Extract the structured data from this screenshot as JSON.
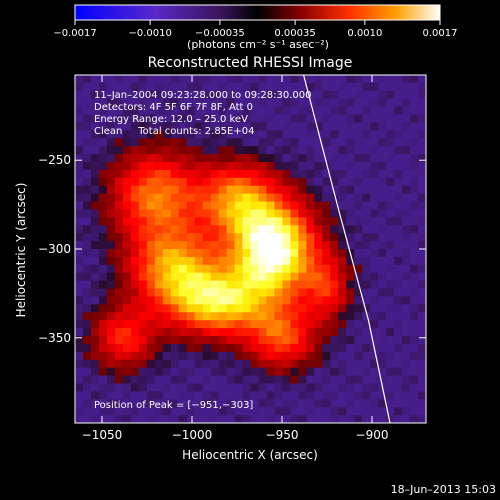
{
  "chart_data": {
    "type": "heatmap",
    "title": "Reconstructed RHESSI Image",
    "xlabel": "Heliocentric X (arcsec)",
    "ylabel": "Heliocentric Y (arcsec)",
    "xlim": [
      -1065,
      -870
    ],
    "ylim": [
      -398,
      -202
    ],
    "x_ticks": [
      -1050,
      -1000,
      -950,
      -900
    ],
    "x_tick_labels": [
      "−1050",
      "−1000",
      "−950",
      "−900"
    ],
    "y_ticks": [
      -250,
      -300,
      -350
    ],
    "y_tick_labels": [
      "−250",
      "−300",
      "−350"
    ],
    "colorbar": {
      "min": -0.0017,
      "max": 0.0017,
      "ticks": [
        -0.0017,
        -0.001,
        -0.00035,
        0.00035,
        0.001,
        0.0017
      ],
      "tick_labels": [
        "−0.0017",
        "−0.0010",
        "−0.00035",
        "0.00035",
        "0.0010",
        "0.0017"
      ],
      "units_label": "(photons cm⁻² s⁻¹ asec⁻²)"
    },
    "annotations": [
      "11–Jan–2004 09:23:28.000 to 09:28:30.000",
      "Detectors: 4F 5F 6F 7F 8F, Att 0",
      "Energy Range: 12.0 – 25.0 keV",
      "Clean     Total counts: 2.85E+04"
    ],
    "peak_label": "Position of Peak = [−951,−303]",
    "peak": [
      -951,
      -303
    ],
    "limb_curve": [
      [
        -938,
        -202
      ],
      [
        -918,
        -280
      ],
      [
        -902,
        -340
      ],
      [
        -890,
        -398
      ]
    ],
    "sources": [
      {
        "x": -955,
        "y": -300,
        "amp": 1.0,
        "sx": 16,
        "sy": 18
      },
      {
        "x": -985,
        "y": -330,
        "amp": 0.72,
        "sx": 20,
        "sy": 13
      },
      {
        "x": -1010,
        "y": -310,
        "amp": 0.6,
        "sx": 17,
        "sy": 15
      },
      {
        "x": -1020,
        "y": -270,
        "amp": 0.55,
        "sx": 17,
        "sy": 17
      },
      {
        "x": -975,
        "y": -272,
        "amp": 0.55,
        "sx": 15,
        "sy": 14
      },
      {
        "x": -1038,
        "y": -350,
        "amp": 0.4,
        "sx": 12,
        "sy": 12
      },
      {
        "x": -950,
        "y": -350,
        "amp": 0.45,
        "sx": 13,
        "sy": 12
      },
      {
        "x": -925,
        "y": -322,
        "amp": 0.35,
        "sx": 9,
        "sy": 13
      }
    ],
    "background_level": 0.12
  },
  "footer": {
    "timestamp": "18–Jun–2013 15:03"
  }
}
